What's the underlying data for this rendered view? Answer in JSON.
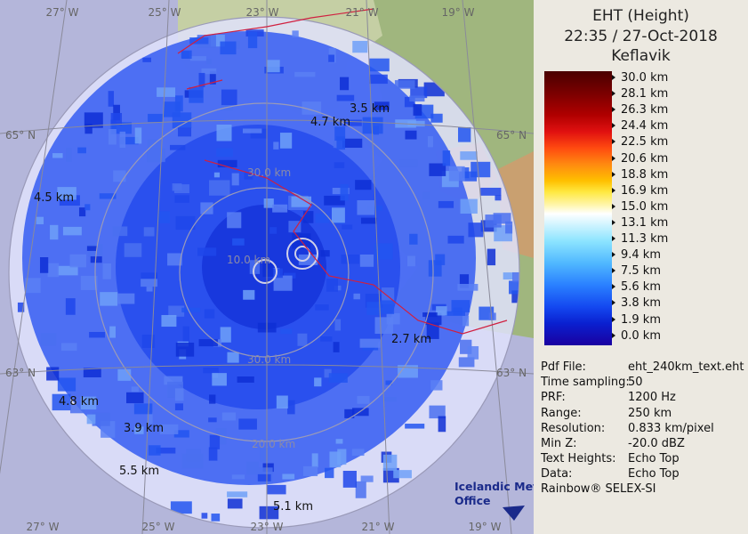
{
  "header": {
    "title": "EHT (Height)",
    "time": "22:35 / 27-Oct-2018",
    "station": "Keflavik"
  },
  "legend": {
    "labels": [
      "30.0 km",
      "28.1 km",
      "26.3 km",
      "24.4 km",
      "22.5 km",
      "20.6 km",
      "18.8 km",
      "16.9 km",
      "15.0 km",
      "13.1 km",
      "11.3 km",
      "9.4 km",
      "7.5 km",
      "5.6 km",
      "3.8 km",
      "1.9 km",
      "0.0 km"
    ]
  },
  "info": {
    "rows": [
      [
        "Pdf File:",
        "eht_240km_text.eht"
      ],
      [
        "Time sampling:",
        "50"
      ],
      [
        "PRF:",
        "1200 Hz"
      ],
      [
        "Range:",
        "250 km"
      ],
      [
        "Resolution:",
        "0.833 km/pixel"
      ],
      [
        "Min Z:",
        "-20.0 dBZ"
      ],
      [
        "Text Heights:",
        "Echo Top"
      ],
      [
        "Data:",
        "Echo Top"
      ]
    ],
    "footer": "Rainbow® SELEX-SI"
  },
  "map": {
    "graticule": {
      "top": [
        "27° W",
        "25° W",
        "23° W",
        "21° W",
        "19° W"
      ],
      "bottom": [
        "27° W",
        "25° W",
        "23° W",
        "21° W",
        "19° W"
      ],
      "left": [
        "65° N",
        "63° N"
      ],
      "right": [
        "65° N",
        "63° N"
      ]
    },
    "rings": [
      "10.0 km",
      "30.0 km",
      "30.0 km",
      "20.0 km"
    ],
    "echo_tops": [
      "3.5 km",
      "4.7 km",
      "4.5 km",
      "2.7 km",
      "4.8 km",
      "3.9 km",
      "5.5 km",
      "5.1 km"
    ],
    "logo": [
      "Icelandic Met",
      "Office"
    ]
  }
}
